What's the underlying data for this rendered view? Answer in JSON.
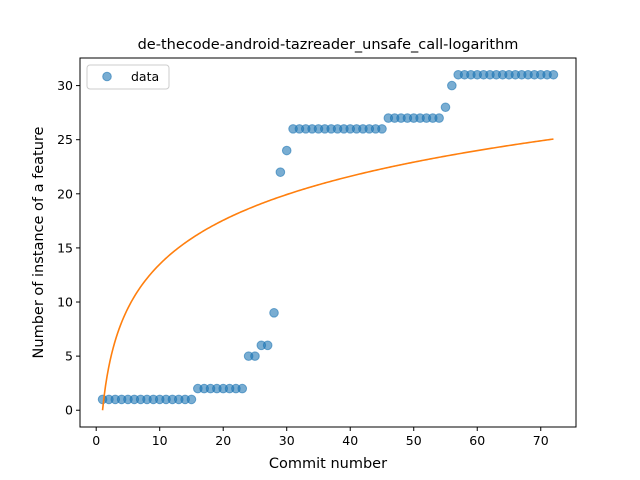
{
  "chart_data": {
    "type": "scatter",
    "title": "de-thecode-android-tazreader_unsafe_call-logarithm",
    "xlabel": "Commit number",
    "ylabel": "Number of instance of a feature",
    "xlim": [
      -2.55,
      75.55
    ],
    "ylim": [
      -1.55,
      32.55
    ],
    "xticks": [
      0,
      10,
      20,
      30,
      40,
      50,
      60,
      70
    ],
    "yticks": [
      0,
      5,
      10,
      15,
      20,
      25,
      30
    ],
    "grid": false,
    "legend": {
      "position": "top-left",
      "entries": [
        "data"
      ]
    },
    "series": [
      {
        "name": "data",
        "kind": "scatter",
        "color": "#1f77b4",
        "x": [
          1,
          2,
          3,
          4,
          5,
          6,
          7,
          8,
          9,
          10,
          11,
          12,
          13,
          14,
          15,
          16,
          17,
          18,
          19,
          20,
          21,
          22,
          23,
          24,
          25,
          26,
          27,
          28,
          29,
          30,
          31,
          32,
          33,
          34,
          35,
          36,
          37,
          38,
          39,
          40,
          41,
          42,
          43,
          44,
          45,
          46,
          47,
          48,
          49,
          50,
          51,
          52,
          53,
          54,
          55,
          56,
          57,
          58,
          59,
          60,
          61,
          62,
          63,
          64,
          65,
          66,
          67,
          68,
          69,
          70,
          71,
          72
        ],
        "y": [
          1,
          1,
          1,
          1,
          1,
          1,
          1,
          1,
          1,
          1,
          1,
          1,
          1,
          1,
          1,
          2,
          2,
          2,
          2,
          2,
          2,
          2,
          2,
          5,
          5,
          6,
          6,
          9,
          22,
          24,
          26,
          26,
          26,
          26,
          26,
          26,
          26,
          26,
          26,
          26,
          26,
          26,
          26,
          26,
          26,
          27,
          27,
          27,
          27,
          27,
          27,
          27,
          27,
          27,
          28,
          30,
          31,
          31,
          31,
          31,
          31,
          31,
          31,
          31,
          31,
          31,
          31,
          31,
          31,
          31,
          31,
          31
        ]
      },
      {
        "name": "",
        "kind": "line",
        "color": "#ff7f0e",
        "model": "logarithmic",
        "coef_a": 5.86,
        "coef_b": 0.0,
        "x_range": [
          1,
          72
        ]
      }
    ]
  }
}
